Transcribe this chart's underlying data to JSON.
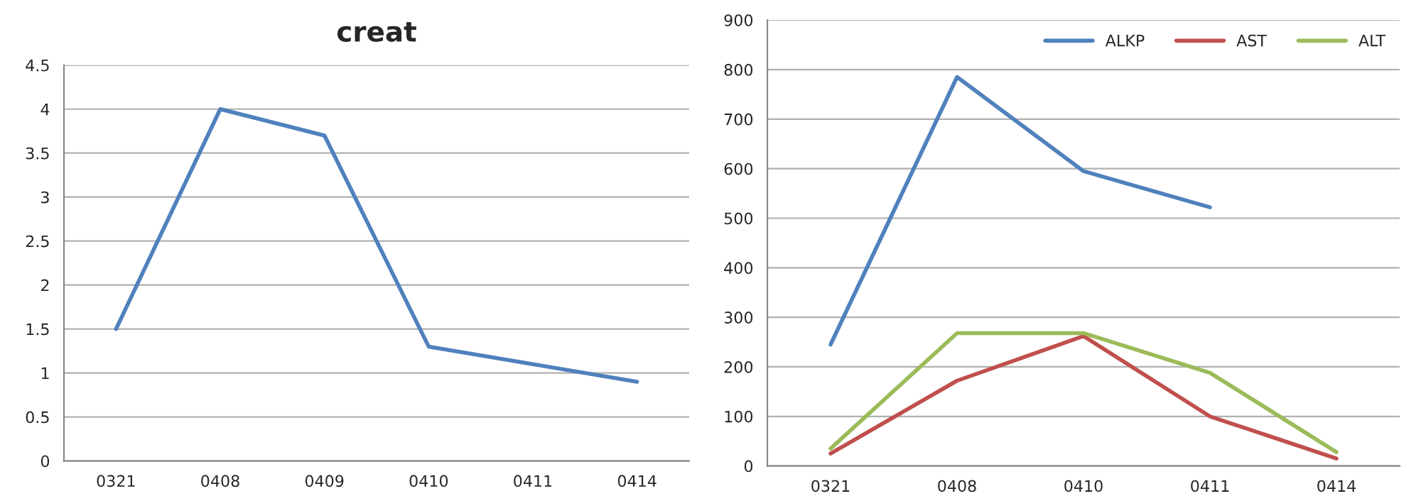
{
  "chart_data": [
    {
      "type": "line",
      "title": "creat",
      "categories": [
        "0321",
        "0408",
        "0409",
        "0410",
        "0411",
        "0414"
      ],
      "series": [
        {
          "color": "#4f81bd",
          "values": [
            1.5,
            4,
            3.7,
            1.3,
            1.1,
            0.9
          ]
        }
      ],
      "ylim": [
        0,
        4.5
      ],
      "yticks": [
        0,
        0.5,
        1,
        1.5,
        2,
        2.5,
        3,
        3.5,
        4,
        4.5
      ],
      "grid": "y",
      "legend": false
    },
    {
      "type": "line",
      "categories": [
        "0321",
        "0408",
        "0410",
        "0411",
        "0414"
      ],
      "series": [
        {
          "name": "ALKP",
          "color": "#4f81bd",
          "values": [
            245,
            785,
            595,
            522,
            null
          ]
        },
        {
          "name": "AST",
          "color": "#c0504d",
          "values": [
            25,
            172,
            262,
            100,
            15
          ]
        },
        {
          "name": "ALT",
          "color": "#9bbb59",
          "values": [
            35,
            268,
            268,
            188,
            28
          ]
        }
      ],
      "ylim": [
        0,
        900
      ],
      "yticks": [
        0,
        100,
        200,
        300,
        400,
        500,
        600,
        700,
        800,
        900
      ],
      "grid": "y",
      "legend": "top right"
    }
  ]
}
